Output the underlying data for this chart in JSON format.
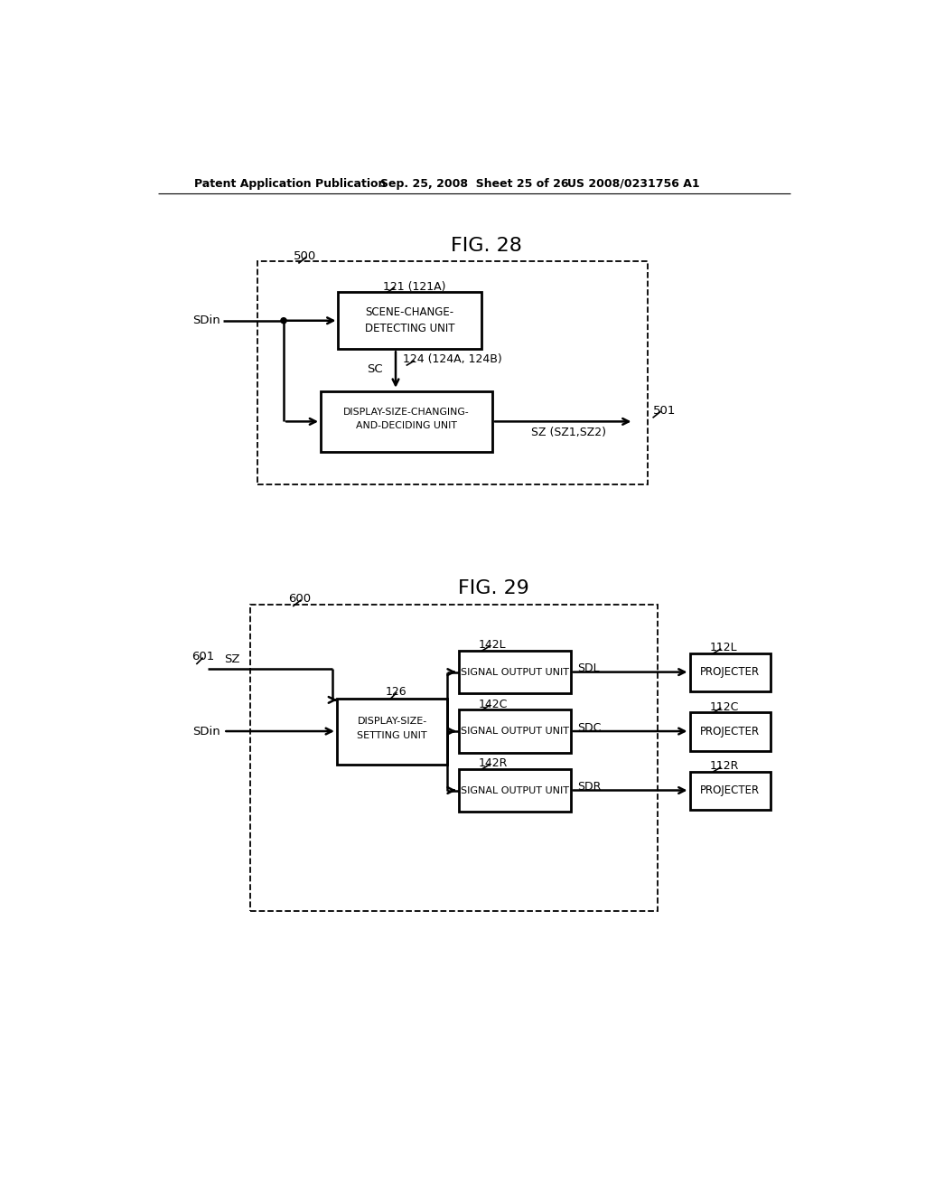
{
  "bg_color": "#ffffff",
  "header_left": "Patent Application Publication",
  "header_mid": "Sep. 25, 2008  Sheet 25 of 26",
  "header_right": "US 2008/0231756 A1",
  "fig28_title": "FIG. 28",
  "fig28_label": "500",
  "fig29_title": "FIG. 29",
  "fig29_label": "600",
  "box_color": "#000000",
  "box_facecolor": "#ffffff",
  "line_color": "#000000",
  "dash_color": "#000000",
  "text_color": "#000000"
}
